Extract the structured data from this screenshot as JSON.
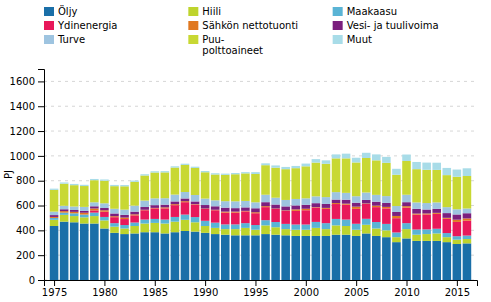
{
  "chart_data": {
    "type": "bar",
    "stacked": true,
    "grid": true,
    "legend": "top",
    "ylabel": "PJ",
    "x": [
      1975,
      1976,
      1977,
      1978,
      1979,
      1980,
      1981,
      1982,
      1983,
      1984,
      1985,
      1986,
      1987,
      1988,
      1989,
      1990,
      1991,
      1992,
      1993,
      1994,
      1995,
      1996,
      1997,
      1998,
      1999,
      2000,
      2001,
      2002,
      2003,
      2004,
      2005,
      2006,
      2007,
      2008,
      2009,
      2010,
      2011,
      2012,
      2013,
      2014,
      2015,
      2016
    ],
    "xlim": [
      1974,
      2017
    ],
    "xticks": [
      1975,
      1980,
      1985,
      1990,
      1995,
      2000,
      2005,
      2010,
      2015
    ],
    "ylim": [
      0,
      1700
    ],
    "yticks": [
      0,
      200,
      400,
      600,
      800,
      1000,
      1200,
      1400,
      1600
    ],
    "series": [
      {
        "name": "Öljy",
        "color": "#1a6fa8",
        "values": [
          435,
          470,
          465,
          455,
          455,
          415,
          380,
          370,
          375,
          385,
          385,
          375,
          385,
          395,
          390,
          380,
          370,
          365,
          360,
          360,
          360,
          370,
          365,
          360,
          355,
          355,
          355,
          355,
          365,
          365,
          355,
          375,
          355,
          345,
          305,
          335,
          315,
          315,
          315,
          305,
          290,
          295
        ]
      },
      {
        "name": "Hiili",
        "color": "#bed42d",
        "values": [
          50,
          55,
          50,
          50,
          60,
          65,
          50,
          45,
          60,
          70,
          75,
          80,
          85,
          90,
          75,
          55,
          50,
          45,
          50,
          60,
          45,
          70,
          60,
          50,
          50,
          50,
          65,
          55,
          75,
          70,
          50,
          70,
          60,
          55,
          40,
          75,
          50,
          55,
          60,
          40,
          35,
          35
        ]
      },
      {
        "name": "Maakaasu",
        "color": "#5ab4d5",
        "values": [
          15,
          18,
          22,
          22,
          28,
          28,
          28,
          28,
          28,
          32,
          32,
          32,
          38,
          42,
          42,
          42,
          42,
          38,
          38,
          38,
          38,
          42,
          42,
          42,
          42,
          42,
          48,
          48,
          52,
          52,
          48,
          48,
          52,
          52,
          38,
          48,
          42,
          38,
          38,
          33,
          28,
          28
        ]
      },
      {
        "name": "Ydinenergia",
        "color": "#e8185a",
        "values": [
          0,
          0,
          0,
          0,
          18,
          42,
          48,
          48,
          58,
          75,
          85,
          90,
          95,
          100,
          100,
          95,
          100,
          95,
          95,
          95,
          95,
          105,
          105,
          105,
          110,
          115,
          115,
          115,
          120,
          120,
          120,
          120,
          120,
          125,
          115,
          125,
          120,
          120,
          120,
          115,
          115,
          120
        ]
      },
      {
        "name": "Sähkön nettotuonti",
        "color": "#e07820",
        "values": [
          8,
          12,
          12,
          15,
          15,
          12,
          8,
          12,
          8,
          4,
          4,
          8,
          8,
          8,
          4,
          4,
          4,
          8,
          8,
          4,
          8,
          8,
          4,
          4,
          12,
          12,
          4,
          8,
          8,
          8,
          18,
          4,
          12,
          12,
          18,
          12,
          8,
          8,
          8,
          8,
          18,
          18
        ]
      },
      {
        "name": "Vesi- ja tuulivoima",
        "color": "#7b1f7e",
        "values": [
          15,
          15,
          15,
          15,
          18,
          18,
          22,
          22,
          22,
          22,
          22,
          22,
          22,
          22,
          22,
          28,
          28,
          32,
          28,
          28,
          32,
          32,
          32,
          32,
          32,
          32,
          32,
          32,
          28,
          32,
          32,
          28,
          32,
          32,
          32,
          32,
          38,
          32,
          32,
          38,
          42,
          42
        ]
      },
      {
        "name": "Turve",
        "color": "#9ec4e0",
        "values": [
          28,
          28,
          28,
          32,
          32,
          38,
          38,
          42,
          48,
          52,
          55,
          52,
          55,
          52,
          52,
          52,
          48,
          52,
          55,
          52,
          48,
          60,
          55,
          52,
          52,
          52,
          55,
          55,
          60,
          55,
          52,
          60,
          55,
          55,
          48,
          60,
          52,
          52,
          52,
          48,
          42,
          38
        ]
      },
      {
        "name": "Puu-\npolttoaineet",
        "color": "#c8d833",
        "values": [
          175,
          178,
          172,
          168,
          178,
          182,
          182,
          188,
          192,
          202,
          208,
          208,
          218,
          218,
          218,
          212,
          208,
          212,
          218,
          222,
          228,
          238,
          242,
          248,
          248,
          258,
          272,
          268,
          272,
          278,
          272,
          278,
          278,
          268,
          252,
          272,
          268,
          268,
          262,
          258,
          262,
          262
        ]
      },
      {
        "name": "Muut",
        "color": "#a8dce8",
        "values": [
          10,
          10,
          10,
          10,
          10,
          10,
          10,
          10,
          10,
          10,
          10,
          10,
          10,
          10,
          10,
          10,
          10,
          10,
          10,
          10,
          15,
          15,
          18,
          18,
          18,
          22,
          28,
          28,
          32,
          38,
          38,
          42,
          48,
          48,
          48,
          52,
          58,
          58,
          58,
          58,
          58,
          62
        ]
      }
    ]
  }
}
